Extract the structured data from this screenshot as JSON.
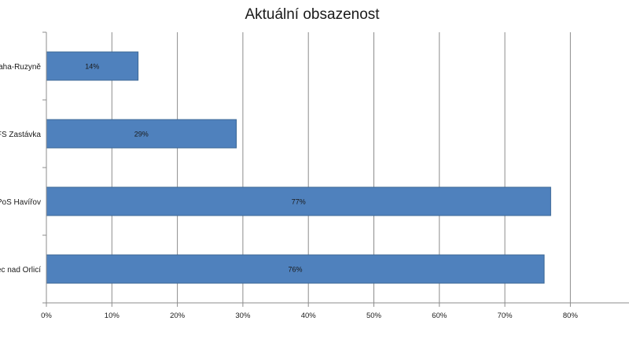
{
  "chart_data": {
    "type": "bar",
    "orientation": "horizontal",
    "title": "Aktuální obsazenost",
    "xlabel": "",
    "ylabel": "",
    "categories": [
      "raha-Ruzyně",
      "PFS Zastávka",
      "PoS Havířov",
      "ec nad Orlicí"
    ],
    "values": [
      14,
      29,
      77,
      76
    ],
    "data_labels": [
      "14%",
      "29%",
      "77%",
      "76%"
    ],
    "xlim": [
      0,
      80
    ],
    "x_ticks": [
      0,
      10,
      20,
      30,
      40,
      50,
      60,
      70,
      80
    ],
    "x_tick_labels": [
      "0%",
      "10%",
      "20%",
      "30%",
      "40%",
      "50%",
      "60%",
      "70%",
      "80%"
    ],
    "grid": "vertical",
    "legend": "none",
    "bar_color": "#4f81bd",
    "bar_edge_color": "#3c6896",
    "grid_color": "#8c8c8c"
  }
}
